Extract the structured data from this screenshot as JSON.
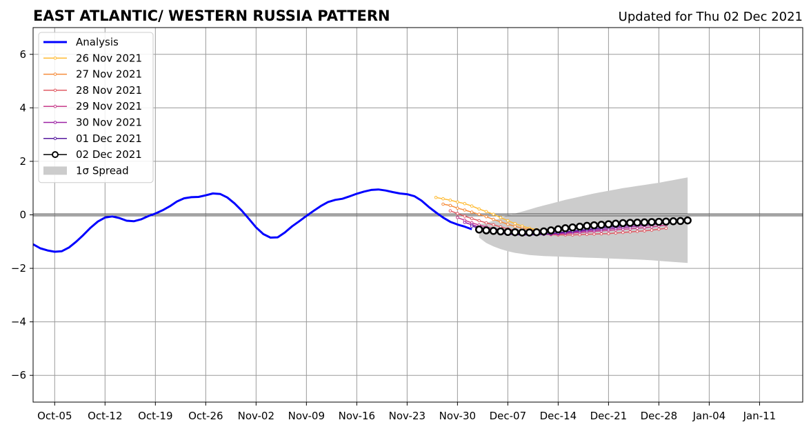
{
  "chart_data": {
    "type": "line",
    "title": "EAST ATLANTIC/ WESTERN RUSSIA PATTERN",
    "subtitle": "Updated for Thu 02 Dec 2021",
    "xlabel": "",
    "ylabel": "",
    "ylim": [
      -7,
      7
    ],
    "xlim": [
      "2021-10-02",
      "2022-01-17"
    ],
    "grid": true,
    "legend_position": "top-left",
    "x_ticks": [
      {
        "date": "2021-10-05",
        "label": "Oct-05"
      },
      {
        "date": "2021-10-12",
        "label": "Oct-12"
      },
      {
        "date": "2021-10-19",
        "label": "Oct-19"
      },
      {
        "date": "2021-10-26",
        "label": "Oct-26"
      },
      {
        "date": "2021-11-02",
        "label": "Nov-02"
      },
      {
        "date": "2021-11-09",
        "label": "Nov-09"
      },
      {
        "date": "2021-11-16",
        "label": "Nov-16"
      },
      {
        "date": "2021-11-23",
        "label": "Nov-23"
      },
      {
        "date": "2021-11-30",
        "label": "Nov-30"
      },
      {
        "date": "2021-12-07",
        "label": "Dec-07"
      },
      {
        "date": "2021-12-14",
        "label": "Dec-14"
      },
      {
        "date": "2021-12-21",
        "label": "Dec-21"
      },
      {
        "date": "2021-12-28",
        "label": "Dec-28"
      },
      {
        "date": "2022-01-04",
        "label": "Jan-04"
      },
      {
        "date": "2022-01-11",
        "label": "Jan-11"
      }
    ],
    "y_ticks": [
      {
        "value": 6,
        "label": "6"
      },
      {
        "value": 4,
        "label": "4"
      },
      {
        "value": 2,
        "label": "2"
      },
      {
        "value": 0,
        "label": "0"
      },
      {
        "value": -2,
        "label": "−2"
      },
      {
        "value": -4,
        "label": "−4"
      },
      {
        "value": -6,
        "label": "−6"
      }
    ],
    "series": [
      {
        "name": "Analysis",
        "color": "#0000ff",
        "style": "analysis",
        "start": "2021-10-02",
        "values": [
          -1.1,
          -1.25,
          -1.33,
          -1.38,
          -1.36,
          -1.22,
          -1.0,
          -0.75,
          -0.48,
          -0.25,
          -0.1,
          -0.06,
          -0.12,
          -0.22,
          -0.24,
          -0.17,
          -0.05,
          0.05,
          0.17,
          0.32,
          0.5,
          0.62,
          0.66,
          0.67,
          0.73,
          0.8,
          0.78,
          0.65,
          0.43,
          0.16,
          -0.15,
          -0.47,
          -0.72,
          -0.85,
          -0.84,
          -0.66,
          -0.43,
          -0.24,
          -0.04,
          0.15,
          0.33,
          0.48,
          0.56,
          0.6,
          0.69,
          0.79,
          0.87,
          0.93,
          0.95,
          0.91,
          0.85,
          0.8,
          0.77,
          0.7,
          0.53,
          0.3,
          0.09,
          -0.1,
          -0.26,
          -0.36,
          -0.44,
          -0.54
        ]
      },
      {
        "name": "26 Nov 2021",
        "color": "#ffbb33",
        "style": "forecast",
        "start": "2021-11-27",
        "values": [
          0.65,
          0.6,
          0.55,
          0.48,
          0.42,
          0.33,
          0.22,
          0.12,
          0.02,
          -0.1,
          -0.22,
          -0.33,
          -0.42,
          -0.5,
          -0.55,
          -0.6
        ]
      },
      {
        "name": "27 Nov 2021",
        "color": "#f58b3a",
        "style": "forecast",
        "start": "2021-11-28",
        "values": [
          0.4,
          0.35,
          0.25,
          0.18,
          0.1,
          0.02,
          -0.07,
          -0.17,
          -0.26,
          -0.35,
          -0.43,
          -0.5,
          -0.55,
          -0.6,
          -0.63
        ]
      },
      {
        "name": "28 Nov 2021",
        "color": "#e05a63",
        "style": "forecast",
        "start": "2021-11-29",
        "values": [
          0.15,
          0.05,
          -0.05,
          -0.14,
          -0.22,
          -0.3,
          -0.37,
          -0.45,
          -0.52,
          -0.58,
          -0.63,
          -0.67,
          -0.7,
          -0.72,
          -0.74,
          -0.75,
          -0.75,
          -0.75,
          -0.74,
          -0.73,
          -0.72,
          -0.71,
          -0.7,
          -0.68,
          -0.66,
          -0.64,
          -0.62,
          -0.6,
          -0.57,
          -0.54,
          -0.5
        ]
      },
      {
        "name": "29 Nov 2021",
        "color": "#c73a8a",
        "style": "forecast",
        "start": "2021-11-30",
        "values": [
          -0.1,
          -0.2,
          -0.3,
          -0.38,
          -0.45,
          -0.51,
          -0.56,
          -0.61,
          -0.65,
          -0.68,
          -0.7,
          -0.72,
          -0.73,
          -0.73,
          -0.72,
          -0.7,
          -0.68,
          -0.66,
          -0.64,
          -0.62,
          -0.6,
          -0.58,
          -0.56,
          -0.54,
          -0.52,
          -0.5,
          -0.48,
          -0.45,
          -0.42,
          -0.38
        ]
      },
      {
        "name": "30 Nov 2021",
        "color": "#9b1fa3",
        "style": "forecast",
        "start": "2021-12-01",
        "values": [
          -0.28,
          -0.37,
          -0.45,
          -0.53,
          -0.59,
          -0.64,
          -0.68,
          -0.71,
          -0.73,
          -0.74,
          -0.74,
          -0.73,
          -0.71,
          -0.69,
          -0.67,
          -0.64,
          -0.62,
          -0.59,
          -0.57,
          -0.55,
          -0.52,
          -0.5,
          -0.47,
          -0.45,
          -0.42,
          -0.4,
          -0.37,
          -0.34,
          -0.3
        ]
      },
      {
        "name": "01 Dec 2021",
        "color": "#55179e",
        "style": "forecast",
        "start": "2021-12-02",
        "values": [
          -0.42,
          -0.5,
          -0.57,
          -0.63,
          -0.68,
          -0.72,
          -0.74,
          -0.75,
          -0.75,
          -0.74,
          -0.72,
          -0.7,
          -0.67,
          -0.64,
          -0.61,
          -0.58,
          -0.55,
          -0.52,
          -0.49,
          -0.46,
          -0.44,
          -0.41,
          -0.39,
          -0.36,
          -0.34,
          -0.32,
          -0.3,
          -0.28
        ]
      },
      {
        "name": "02 Dec 2021",
        "color": "#000000",
        "style": "latest",
        "start": "2021-12-03",
        "values": [
          -0.55,
          -0.58,
          -0.6,
          -0.62,
          -0.64,
          -0.65,
          -0.66,
          -0.66,
          -0.65,
          -0.62,
          -0.58,
          -0.54,
          -0.5,
          -0.47,
          -0.44,
          -0.41,
          -0.39,
          -0.37,
          -0.35,
          -0.33,
          -0.31,
          -0.3,
          -0.29,
          -0.28,
          -0.27,
          -0.26,
          -0.25,
          -0.24,
          -0.23,
          -0.21
        ]
      }
    ],
    "spread": {
      "name": "1σ Spread",
      "color": "#cccccc",
      "start": "2021-12-03",
      "upper": [
        -0.35,
        -0.3,
        -0.22,
        -0.12,
        -0.02,
        0.05,
        0.12,
        0.2,
        0.28,
        0.35,
        0.42,
        0.49,
        0.56,
        0.62,
        0.68,
        0.74,
        0.8,
        0.85,
        0.9,
        0.95,
        1.0,
        1.04,
        1.08,
        1.12,
        1.16,
        1.2,
        1.25,
        1.3,
        1.35,
        1.4
      ],
      "lower": [
        -0.85,
        -1.05,
        -1.18,
        -1.28,
        -1.36,
        -1.42,
        -1.46,
        -1.5,
        -1.52,
        -1.54,
        -1.55,
        -1.56,
        -1.57,
        -1.58,
        -1.59,
        -1.6,
        -1.61,
        -1.62,
        -1.63,
        -1.64,
        -1.65,
        -1.66,
        -1.67,
        -1.68,
        -1.7,
        -1.72,
        -1.74,
        -1.76,
        -1.78,
        -1.8
      ]
    }
  }
}
